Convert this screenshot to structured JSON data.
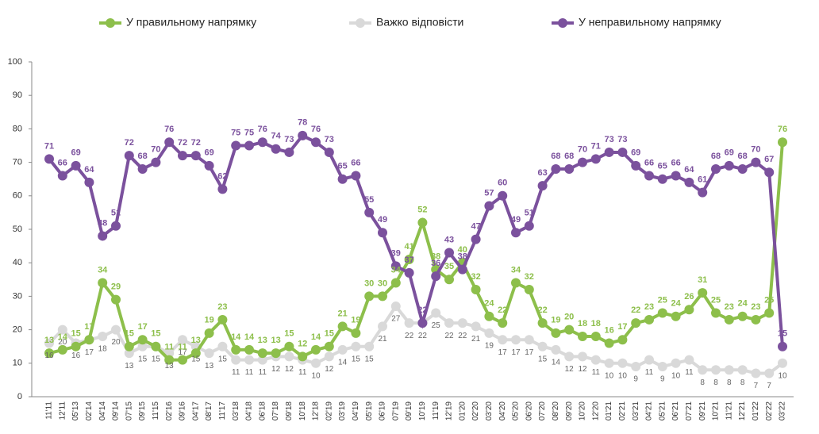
{
  "chart_data": {
    "type": "line",
    "categories": [
      "11'11",
      "12'11",
      "05'13",
      "02'14",
      "04'14",
      "09'14",
      "07'15",
      "09'15",
      "11'15",
      "02'16",
      "09'16",
      "04'17",
      "08'17",
      "11'17",
      "03'18",
      "04'18",
      "06'18",
      "07'18",
      "09'18",
      "10'18",
      "12'18",
      "02'19",
      "03'19",
      "04'19",
      "05'19",
      "06'19",
      "07'19",
      "09'19",
      "10'19",
      "11'19",
      "12'19",
      "01'20",
      "02'20",
      "03'20",
      "04'20",
      "05'20",
      "06'20",
      "07'20",
      "08'20",
      "09'20",
      "10'20",
      "12'20",
      "01'21",
      "02'21",
      "03'21",
      "04'21",
      "05'21",
      "06'21",
      "07'21",
      "09'21",
      "10'21",
      "11'21",
      "12'21",
      "01'22",
      "02'22",
      "03'22"
    ],
    "series": [
      {
        "name": "У правильному напрямку",
        "color": "#8dbf4b",
        "values": [
          13,
          14,
          15,
          17,
          34,
          29,
          15,
          17,
          15,
          11,
          11,
          13,
          19,
          23,
          14,
          14,
          13,
          13,
          15,
          12,
          14,
          15,
          21,
          19,
          30,
          30,
          34,
          41,
          52,
          38,
          35,
          40,
          32,
          24,
          22,
          34,
          32,
          22,
          19,
          20,
          18,
          18,
          16,
          17,
          22,
          23,
          25,
          24,
          26,
          31,
          25,
          23,
          24,
          23,
          25,
          76
        ]
      },
      {
        "name": "Важко відповісти",
        "color": "#d9d9d9",
        "values": [
          16,
          20,
          16,
          17,
          18,
          20,
          13,
          15,
          15,
          13,
          17,
          15,
          13,
          15,
          11,
          11,
          11,
          12,
          12,
          11,
          10,
          12,
          14,
          15,
          15,
          21,
          27,
          22,
          22,
          25,
          22,
          22,
          21,
          19,
          17,
          17,
          17,
          15,
          14,
          12,
          12,
          11,
          10,
          10,
          9,
          11,
          9,
          10,
          11,
          8,
          8,
          8,
          8,
          7,
          7,
          10
        ]
      },
      {
        "name": "У неправильному напрямку",
        "color": "#7b519d",
        "values": [
          71,
          66,
          69,
          64,
          48,
          51,
          72,
          68,
          70,
          76,
          72,
          72,
          69,
          62,
          75,
          75,
          76,
          74,
          73,
          78,
          76,
          73,
          65,
          66,
          55,
          49,
          39,
          37,
          22,
          36,
          43,
          38,
          47,
          57,
          60,
          49,
          51,
          63,
          68,
          68,
          70,
          71,
          73,
          73,
          69,
          66,
          65,
          66,
          64,
          61,
          68,
          69,
          68,
          70,
          67,
          15
        ]
      }
    ],
    "ylim": [
      0,
      100
    ],
    "yticks": [
      0,
      10,
      20,
      30,
      40,
      50,
      60,
      70,
      80,
      90,
      100
    ],
    "grid": false,
    "legend": "top"
  }
}
